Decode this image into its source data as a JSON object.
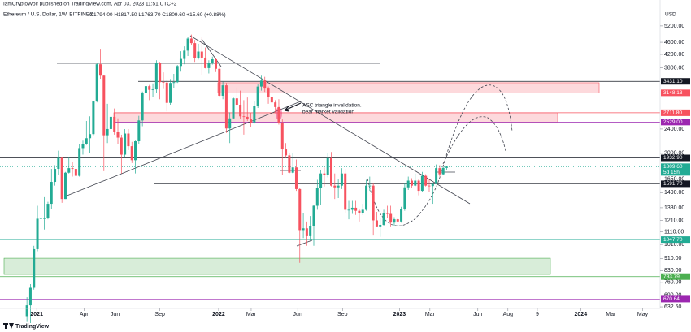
{
  "header": {
    "publisher": "IamCryptoWolf published on TradingView.com, Apr 03, 2023 11:51 UTC+2",
    "symbol": "Ethereum / U.S. Dollar, 1W, BITFINEX",
    "ohlc": [
      "O1794.00",
      "H1817.50",
      "L1763.70",
      "C1809.60"
    ],
    "change": "+15.60 (+0.88%)",
    "brand": "TradingView"
  },
  "chart_data": {
    "type": "candlestick",
    "currency": "USD",
    "annotation": [
      "ASC triangle invalidation.",
      "bear market validation"
    ],
    "log_scale": true,
    "up_color": "#22ab94",
    "down_color": "#f7525f",
    "ylim": [
      625,
      5870
    ],
    "xlim": [
      -7.7,
      181
    ],
    "yticks": [
      {
        "value": 5200,
        "label": "5200.00"
      },
      {
        "value": 4600,
        "label": "4600.00"
      },
      {
        "value": 4200,
        "label": "4200.00"
      },
      {
        "value": 3800,
        "label": "3800.00"
      },
      {
        "value": 2400,
        "label": "2400.00"
      },
      {
        "value": 2000,
        "label": "2000.00"
      },
      {
        "value": 1650,
        "label": "1650.00"
      },
      {
        "value": 1490,
        "label": "1490.00"
      },
      {
        "value": 1330,
        "label": "1330.00"
      },
      {
        "value": 1210,
        "label": "1210.00"
      },
      {
        "value": 1110,
        "label": "1110.00"
      },
      {
        "value": 1010,
        "label": "1010.00"
      },
      {
        "value": 910,
        "label": "910.00"
      },
      {
        "value": 830,
        "label": "830.00"
      },
      {
        "value": 760,
        "label": "760.00"
      },
      {
        "value": 690,
        "label": "690.00"
      },
      {
        "value": 632.5,
        "label": "632.50"
      }
    ],
    "xticks": [
      {
        "value": 2.8,
        "label": "2021"
      },
      {
        "value": 16.3,
        "label": "Apr"
      },
      {
        "value": 25.2,
        "label": "Jun"
      },
      {
        "value": 38.0,
        "label": "Sep"
      },
      {
        "value": 54.8,
        "label": "2022"
      },
      {
        "value": 64.1,
        "label": "Mar"
      },
      {
        "value": 77.4,
        "label": "Jun"
      },
      {
        "value": 90.2,
        "label": "Sep"
      },
      {
        "value": 106.5,
        "label": "2023"
      },
      {
        "value": 115.2,
        "label": "Mar"
      },
      {
        "value": 128.9,
        "label": "Jun"
      },
      {
        "value": 137.5,
        "label": "Aug"
      },
      {
        "value": 145.9,
        "label": "9"
      },
      {
        "value": 158.3,
        "label": "2024"
      },
      {
        "value": 166.9,
        "label": "Mar"
      },
      {
        "value": 176.0,
        "label": "May"
      }
    ],
    "price_lines": [
      {
        "value": 3431.1,
        "label": "3431.10",
        "color": "#131722"
      },
      {
        "value": 3148.13,
        "label": "3148.13",
        "color": "#f7525f"
      },
      {
        "value": 2711.8,
        "label": "2711.80",
        "color": "#f7525f"
      },
      {
        "value": 2529,
        "label": "2529.00",
        "color": "#9c27b0"
      },
      {
        "value": 1932.9,
        "label": "1932.90",
        "color": "#131722"
      },
      {
        "value": 1809.6,
        "label": "1809.60",
        "color": "#22ab94",
        "countdown": "5d 15h"
      },
      {
        "value": 1591.7,
        "label": "1591.70",
        "color": "#131722"
      },
      {
        "value": 1047.7,
        "label": "1047.70",
        "color": "#22ab94"
      },
      {
        "value": 793.79,
        "label": "793.79",
        "color": "#4caf50"
      },
      {
        "value": 670.64,
        "label": "670.64",
        "color": "#9c27b0"
      }
    ],
    "zones": [
      {
        "range": [
          3148.13,
          3395
        ],
        "color": "#f7525f"
      },
      {
        "range": [
          2529,
          2711.8
        ],
        "color": "#f7525f"
      },
      {
        "range": [
          807,
          911
        ],
        "color": "#4caf50"
      }
    ],
    "candles": [
      [
        590,
        680,
        565,
        640
      ],
      [
        640,
        750,
        560,
        730
      ],
      [
        730,
        1000,
        720,
        975
      ],
      [
        975,
        1350,
        960,
        1225
      ],
      [
        1225,
        1260,
        1000,
        1230
      ],
      [
        1230,
        1440,
        1130,
        1230
      ],
      [
        1230,
        1390,
        1220,
        1370
      ],
      [
        1370,
        1780,
        1320,
        1615
      ],
      [
        1615,
        1830,
        1570,
        1780
      ],
      [
        1780,
        2040,
        1700,
        1935
      ],
      [
        1935,
        1950,
        1380,
        1420
      ],
      [
        1420,
        1740,
        1420,
        1730
      ],
      [
        1730,
        1940,
        1720,
        1790
      ],
      [
        1790,
        1880,
        1680,
        1780
      ],
      [
        1780,
        1820,
        1550,
        1690
      ],
      [
        1690,
        2140,
        1680,
        2080
      ],
      [
        2080,
        2200,
        1980,
        2140
      ],
      [
        2140,
        2550,
        2130,
        2240
      ],
      [
        2240,
        2640,
        2000,
        2310
      ],
      [
        2310,
        2950,
        2290,
        2950
      ],
      [
        2950,
        3950,
        2930,
        3900
      ],
      [
        3900,
        4380,
        3500,
        3580
      ],
      [
        3580,
        3600,
        1750,
        2290
      ],
      [
        2290,
        2900,
        2160,
        2400
      ],
      [
        2400,
        2900,
        2360,
        2630
      ],
      [
        2630,
        2800,
        2300,
        2350
      ],
      [
        2350,
        2600,
        2150,
        2250
      ],
      [
        2250,
        2300,
        1720,
        1980
      ],
      [
        1980,
        2400,
        1940,
        2320
      ],
      [
        2320,
        2400,
        2050,
        2110
      ],
      [
        2110,
        2180,
        1860,
        1900
      ],
      [
        1900,
        2200,
        1720,
        2190
      ],
      [
        2190,
        2650,
        2150,
        2560
      ],
      [
        2560,
        3180,
        2450,
        3140
      ],
      [
        3140,
        3330,
        2950,
        3310
      ],
      [
        3310,
        3340,
        2980,
        3220
      ],
      [
        3220,
        3380,
        3060,
        3230
      ],
      [
        3230,
        4020,
        3150,
        3930
      ],
      [
        3930,
        3970,
        3000,
        3410
      ],
      [
        3410,
        3670,
        3240,
        3400
      ],
      [
        3400,
        3480,
        2740,
        2920
      ],
      [
        2920,
        3490,
        2880,
        3390
      ],
      [
        3390,
        3630,
        3270,
        3410
      ],
      [
        3410,
        3880,
        3390,
        3850
      ],
      [
        3850,
        4300,
        3690,
        4060
      ],
      [
        4060,
        4460,
        3900,
        4320
      ],
      [
        4320,
        4800,
        4150,
        4730
      ],
      [
        4730,
        4870,
        4510,
        4570
      ],
      [
        4570,
        4680,
        3970,
        4090
      ],
      [
        4090,
        4550,
        4040,
        4290
      ],
      [
        4290,
        4780,
        3600,
        4100
      ],
      [
        4100,
        4420,
        3780,
        3790
      ],
      [
        3790,
        4020,
        3640,
        3940
      ],
      [
        3940,
        4130,
        3890,
        4050
      ],
      [
        4050,
        4090,
        3680,
        3770
      ],
      [
        3770,
        3860,
        3050,
        3080
      ],
      [
        3080,
        3420,
        3000,
        3330
      ],
      [
        3330,
        3390,
        2330,
        2410
      ],
      [
        2410,
        2720,
        2160,
        2600
      ],
      [
        2600,
        3040,
        2590,
        3020
      ],
      [
        3020,
        3280,
        2840,
        2880
      ],
      [
        2880,
        3200,
        2580,
        2640
      ],
      [
        2640,
        2980,
        2300,
        2630
      ],
      [
        2630,
        3040,
        2550,
        2580
      ],
      [
        2580,
        2710,
        2430,
        2520
      ],
      [
        2520,
        2950,
        2500,
        2860
      ],
      [
        2860,
        3350,
        2810,
        3300
      ],
      [
        3300,
        3580,
        3200,
        3450
      ],
      [
        3450,
        3550,
        3170,
        3250
      ],
      [
        3250,
        3300,
        2900,
        3060
      ],
      [
        3060,
        3180,
        2900,
        2930
      ],
      [
        2930,
        2980,
        2700,
        2830
      ],
      [
        2830,
        3000,
        2480,
        2520
      ],
      [
        2520,
        2580,
        1700,
        2060
      ],
      [
        2060,
        2160,
        1930,
        1970
      ],
      [
        1970,
        2010,
        1720,
        1730
      ],
      [
        1730,
        2000,
        1720,
        1800
      ],
      [
        1800,
        1910,
        1510,
        1530
      ],
      [
        1530,
        1540,
        880,
        1125
      ],
      [
        1125,
        1280,
        1060,
        1140
      ],
      [
        1140,
        1200,
        1000,
        1075
      ],
      [
        1075,
        1250,
        1040,
        1160
      ],
      [
        1160,
        1360,
        1000,
        1350
      ],
      [
        1350,
        1640,
        1310,
        1540
      ],
      [
        1540,
        1760,
        1360,
        1720
      ],
      [
        1720,
        1800,
        1560,
        1700
      ],
      [
        1700,
        2000,
        1670,
        1930
      ],
      [
        1930,
        2020,
        1560,
        1570
      ],
      [
        1570,
        1720,
        1420,
        1550
      ],
      [
        1550,
        1650,
        1430,
        1570
      ],
      [
        1570,
        1790,
        1530,
        1720
      ],
      [
        1720,
        1780,
        1280,
        1310
      ],
      [
        1310,
        1400,
        1220,
        1310
      ],
      [
        1310,
        1400,
        1270,
        1330
      ],
      [
        1330,
        1400,
        1260,
        1300
      ],
      [
        1300,
        1320,
        1200,
        1280
      ],
      [
        1280,
        1370,
        1260,
        1310
      ],
      [
        1310,
        1640,
        1300,
        1570
      ],
      [
        1570,
        1680,
        1510,
        1570
      ],
      [
        1570,
        1600,
        1080,
        1210
      ],
      [
        1210,
        1290,
        1150,
        1150
      ],
      [
        1150,
        1230,
        1070,
        1170
      ],
      [
        1170,
        1310,
        1160,
        1280
      ],
      [
        1280,
        1350,
        1230,
        1270
      ],
      [
        1270,
        1350,
        1150,
        1190
      ],
      [
        1190,
        1240,
        1160,
        1220
      ],
      [
        1220,
        1230,
        1190,
        1200
      ],
      [
        1200,
        1340,
        1190,
        1320
      ],
      [
        1320,
        1600,
        1300,
        1550
      ],
      [
        1550,
        1680,
        1520,
        1630
      ],
      [
        1630,
        1660,
        1540,
        1570
      ],
      [
        1570,
        1720,
        1560,
        1630
      ],
      [
        1630,
        1650,
        1460,
        1510
      ],
      [
        1510,
        1740,
        1500,
        1690
      ],
      [
        1690,
        1710,
        1560,
        1570
      ],
      [
        1570,
        1650,
        1500,
        1565
      ],
      [
        1565,
        1600,
        1370,
        1590
      ],
      [
        1590,
        1840,
        1590,
        1790
      ],
      [
        1790,
        1830,
        1680,
        1710
      ],
      [
        1710,
        1800,
        1700,
        1794
      ],
      [
        1794,
        1817.5,
        1763.7,
        1809.6
      ]
    ]
  }
}
